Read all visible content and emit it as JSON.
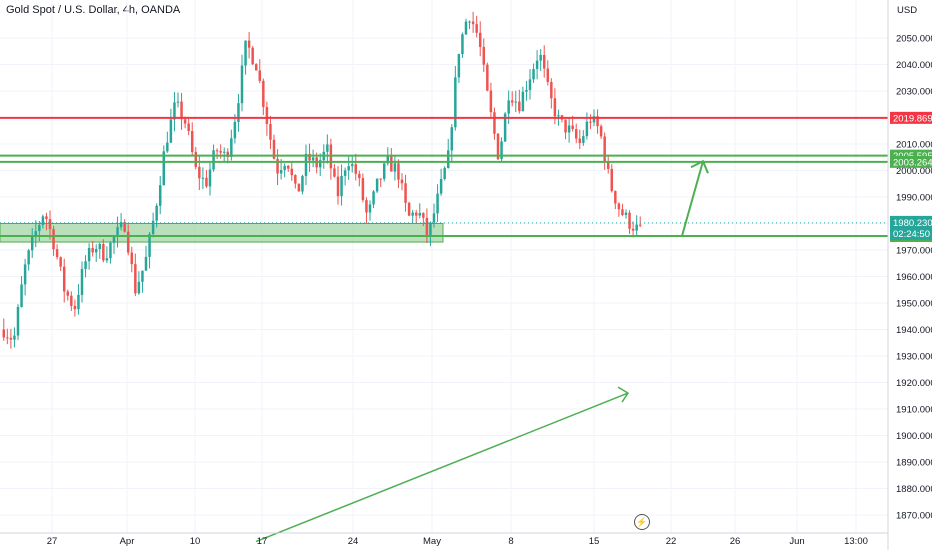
{
  "header": {
    "symbol_title": "Gold Spot / U.S. Dollar, 4h, OANDA"
  },
  "price_axis": {
    "currency": "USD"
  },
  "colors": {
    "bull": "#26a69a",
    "bear": "#ef5350",
    "resistance": "#f23645",
    "support": "#4caf50",
    "zone_fill": "#81c784",
    "current_price_tag": "#26a69a"
  },
  "chart_data": {
    "type": "candlestick",
    "title": "Gold Spot / U.S. Dollar, 4h, OANDA",
    "ylabel": "USD",
    "ylim": [
      1866,
      2070
    ],
    "y_ticks": [
      1870,
      1880,
      1890,
      1900,
      1910,
      1920,
      1930,
      1940,
      1950,
      1960,
      1970,
      1980,
      1990,
      2000,
      2010,
      2020,
      2030,
      2040,
      2050
    ],
    "y_tick_labels": [
      "1870.000",
      "1880.000",
      "1890.000",
      "1900.000",
      "1910.000",
      "1920.000",
      "1930.000",
      "1940.000",
      "1950.000",
      "1960.000",
      "1970.000",
      "1980.000",
      "1990.000",
      "2000.000",
      "2010.000",
      "2020.000",
      "2030.000",
      "2040.000",
      "2050.000"
    ],
    "x_tick_labels": [
      "27",
      "Apr",
      "10",
      "17",
      "24",
      "May",
      "8",
      "15",
      "22",
      "26",
      "Jun",
      "13:00"
    ],
    "grid": true,
    "path_close_approx": [
      1940,
      1936,
      1962,
      1975,
      1985,
      1972,
      1955,
      1948,
      1965,
      1972,
      1968,
      1975,
      1980,
      1955,
      1965,
      1985,
      2010,
      2025,
      2018,
      2000,
      1995,
      2008,
      2005,
      2022,
      2048,
      2040,
      2020,
      2000,
      2005,
      1990,
      2005,
      2002,
      2008,
      1990,
      2005,
      1998,
      1982,
      1995,
      2003,
      2000,
      1982,
      1985,
      1975,
      1990,
      2005,
      2045,
      2060,
      2050,
      2025,
      2005,
      2030,
      2025,
      2035,
      2045,
      2028,
      2018,
      2015,
      2010,
      2020,
      2015,
      1995,
      1985,
      1980,
      1977
    ],
    "horizontal_levels": [
      {
        "label": "2019.869",
        "value": 2019.869,
        "color": "#f23645"
      },
      {
        "label": "2005.595",
        "value": 2005.595,
        "color": "#4caf50"
      },
      {
        "label": "2003.264",
        "value": 2003.264,
        "color": "#4caf50"
      },
      {
        "label": "1975.293",
        "value": 1975.293,
        "color": "#4caf50"
      }
    ],
    "support_zone": {
      "from": 1973,
      "to": 1980
    },
    "current_price": {
      "label": "1980.230",
      "value": 1980.23,
      "countdown": "02:24:50"
    },
    "projection_arrow": {
      "from": 1975.293,
      "to": 2003.5
    },
    "trend_arrow": {
      "from": 1866,
      "to": 1916
    }
  }
}
